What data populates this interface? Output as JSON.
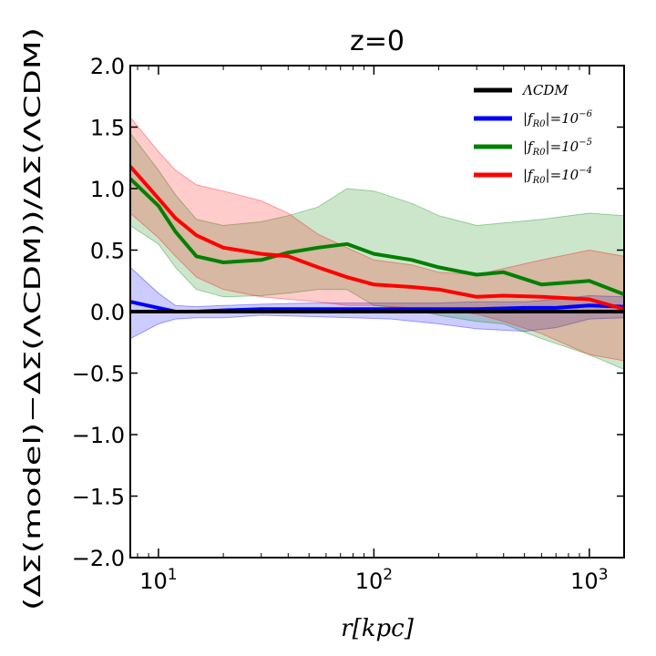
{
  "chart_data": {
    "type": "line",
    "title": "z=0",
    "xlabel": "r[kpc]",
    "ylabel": "(ΔΣ(model)−ΔΣ(ΛCDM))/ΔΣ(ΛCDM)",
    "xscale": "log",
    "xlim": [
      7.4,
      1450
    ],
    "ylim": [
      -2.0,
      2.0
    ],
    "yticks": [
      -2.0,
      -1.5,
      -1.0,
      -0.5,
      0.0,
      0.5,
      1.0,
      1.5,
      2.0
    ],
    "ytick_labels": [
      "−2.0",
      "−1.5",
      "−1.0",
      "−0.5",
      "0.0",
      "0.5",
      "1.0",
      "1.5",
      "2.0"
    ],
    "xtick_labels": [
      {
        "value": 10,
        "base": "10",
        "exp": "1"
      },
      {
        "value": 100,
        "base": "10",
        "exp": "2"
      },
      {
        "value": 1000,
        "base": "10",
        "exp": "3"
      }
    ],
    "legend_position": "top-right",
    "series": [
      {
        "name": "ΛCDM",
        "legend_label": "ΛCDM",
        "color": "#000000",
        "x": [
          7.4,
          1450
        ],
        "y": [
          0.0,
          0.0
        ]
      },
      {
        "name": "|fR0|=10^-6",
        "legend_label": "|f",
        "legend_sub": "R0",
        "legend_mid": "|=10",
        "legend_sup": "−6",
        "color": "#0000ff",
        "fill": "#0000ff",
        "x": [
          7.4,
          10,
          12,
          15,
          20,
          30,
          50,
          80,
          120,
          200,
          300,
          500,
          700,
          1000,
          1450
        ],
        "y": [
          0.08,
          0.03,
          0.0,
          0.0,
          0.01,
          0.02,
          0.02,
          0.02,
          0.02,
          0.02,
          0.02,
          0.03,
          0.03,
          0.05,
          0.04
        ],
        "upper": [
          0.36,
          0.15,
          0.05,
          0.04,
          0.05,
          0.06,
          0.07,
          0.07,
          0.07,
          0.07,
          0.08,
          0.08,
          0.1,
          0.13,
          0.12
        ],
        "lower": [
          -0.22,
          -0.1,
          -0.06,
          -0.05,
          -0.05,
          -0.03,
          -0.04,
          -0.05,
          -0.06,
          -0.1,
          -0.14,
          -0.16,
          -0.13,
          -0.06,
          -0.05
        ]
      },
      {
        "name": "|fR0|=10^-5",
        "legend_label": "|f",
        "legend_sub": "R0",
        "legend_mid": "|=10",
        "legend_sup": "−5",
        "color": "#008000",
        "fill": "#008000",
        "x": [
          7.4,
          10,
          12,
          15,
          20,
          30,
          40,
          55,
          75,
          100,
          150,
          200,
          300,
          400,
          600,
          1000,
          1450
        ],
        "y": [
          1.08,
          0.86,
          0.65,
          0.45,
          0.4,
          0.42,
          0.48,
          0.52,
          0.55,
          0.47,
          0.42,
          0.36,
          0.3,
          0.32,
          0.22,
          0.25,
          0.14
        ],
        "upper": [
          1.45,
          1.15,
          0.95,
          0.75,
          0.7,
          0.73,
          0.78,
          0.85,
          1.0,
          0.98,
          0.88,
          0.78,
          0.7,
          0.72,
          0.75,
          0.8,
          0.78
        ],
        "lower": [
          0.7,
          0.55,
          0.36,
          0.18,
          0.12,
          0.13,
          0.15,
          0.18,
          0.18,
          0.05,
          0.02,
          -0.03,
          -0.08,
          -0.1,
          -0.22,
          -0.35,
          -0.47
        ]
      },
      {
        "name": "|fR0|=10^-4",
        "legend_label": "|f",
        "legend_sub": "R0",
        "legend_mid": "|=10",
        "legend_sup": "−4",
        "color": "#ff0000",
        "fill": "#ff0000",
        "x": [
          7.4,
          10,
          12,
          15,
          20,
          30,
          40,
          55,
          75,
          100,
          150,
          200,
          300,
          400,
          600,
          1000,
          1450
        ],
        "y": [
          1.18,
          0.92,
          0.76,
          0.62,
          0.52,
          0.47,
          0.45,
          0.36,
          0.28,
          0.22,
          0.2,
          0.18,
          0.12,
          0.13,
          0.12,
          0.1,
          0.02
        ],
        "upper": [
          1.58,
          1.3,
          1.15,
          1.03,
          0.98,
          0.9,
          0.8,
          0.63,
          0.52,
          0.42,
          0.38,
          0.32,
          0.3,
          0.35,
          0.42,
          0.5,
          0.45
        ],
        "lower": [
          0.8,
          0.6,
          0.45,
          0.28,
          0.18,
          0.12,
          0.1,
          0.08,
          0.05,
          0.05,
          0.03,
          0.02,
          -0.02,
          -0.08,
          -0.18,
          -0.35,
          -0.4
        ]
      }
    ]
  }
}
